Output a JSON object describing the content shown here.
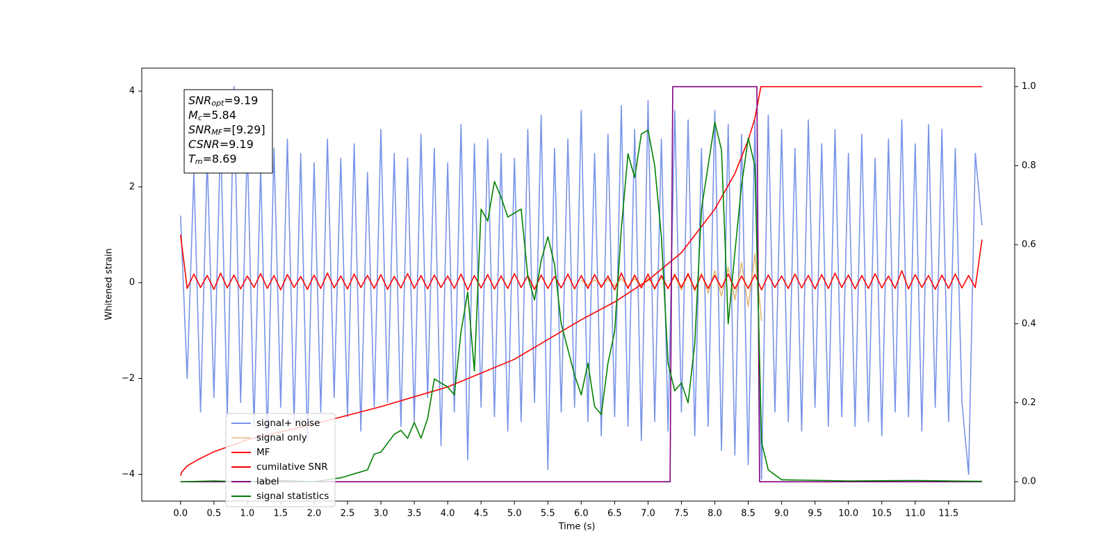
{
  "chart_data": {
    "type": "line",
    "xlabel": "Time (s)",
    "ylabel": "Whitened strain",
    "xlim": [
      -0.58,
      12.49
    ],
    "ylim": [
      -4.56,
      4.48
    ],
    "y2lim": [
      -0.049,
      1.047
    ],
    "xticks": [
      {
        "value": 0,
        "label": "0.0"
      },
      {
        "value": 0.5,
        "label": "0.5"
      },
      {
        "value": 1,
        "label": "1.0"
      },
      {
        "value": 1.5,
        "label": "1.5"
      },
      {
        "value": 2,
        "label": "2.0"
      },
      {
        "value": 2.5,
        "label": "2.5"
      },
      {
        "value": 3,
        "label": "3.0"
      },
      {
        "value": 3.5,
        "label": "3.5"
      },
      {
        "value": 4,
        "label": "4.0"
      },
      {
        "value": 4.5,
        "label": "4.5"
      },
      {
        "value": 5,
        "label": "5.0"
      },
      {
        "value": 5.5,
        "label": "5.5"
      },
      {
        "value": 6,
        "label": "6.0"
      },
      {
        "value": 6.5,
        "label": "6.5"
      },
      {
        "value": 7,
        "label": "7.0"
      },
      {
        "value": 7.5,
        "label": "7.5"
      },
      {
        "value": 8,
        "label": "8.0"
      },
      {
        "value": 8.5,
        "label": "8.5"
      },
      {
        "value": 9,
        "label": "9.0"
      },
      {
        "value": 9.5,
        "label": "9.5"
      },
      {
        "value": 10,
        "label": "10.0"
      },
      {
        "value": 10.5,
        "label": "10.5"
      },
      {
        "value": 11,
        "label": "11.0"
      },
      {
        "value": 11.5,
        "label": "11.5"
      }
    ],
    "yticks": [
      {
        "value": -4,
        "label": "−4"
      },
      {
        "value": -2,
        "label": "−2"
      },
      0,
      2,
      4
    ],
    "y2ticks": [
      {
        "value": 0,
        "label": "0.0"
      },
      {
        "value": 0.2,
        "label": "0.2"
      },
      {
        "value": 0.4,
        "label": "0.4"
      },
      {
        "value": 0.6,
        "label": "0.6"
      },
      {
        "value": 0.8,
        "label": "0.8"
      },
      {
        "value": 1,
        "label": "1.0"
      }
    ],
    "legend": "lower left",
    "annotations": [
      {
        "name": "SNR",
        "sub": "opt",
        "text": "=9.19"
      },
      {
        "name": "M",
        "sub": "c",
        "text": "=5.84"
      },
      {
        "name": "SNR",
        "sub": "MF",
        "text": "=[9.29]"
      },
      {
        "name": "CSNR",
        "text": "=9.19"
      },
      {
        "name": "T",
        "sub": "m",
        "text": "=8.69"
      }
    ],
    "x": [
      0,
      0.1,
      0.2,
      0.3,
      0.4,
      0.5,
      0.6,
      0.7,
      0.8,
      0.9,
      1,
      1.1,
      1.2,
      1.3,
      1.4,
      1.5,
      1.6,
      1.7,
      1.8,
      1.9,
      2,
      2.1,
      2.2,
      2.3,
      2.4,
      2.5,
      2.6,
      2.7,
      2.8,
      2.9,
      3,
      3.1,
      3.2,
      3.3,
      3.4,
      3.5,
      3.6,
      3.7,
      3.8,
      3.9,
      4,
      4.1,
      4.2,
      4.3,
      4.4,
      4.5,
      4.6,
      4.7,
      4.8,
      4.9,
      5,
      5.1,
      5.2,
      5.3,
      5.4,
      5.5,
      5.6,
      5.7,
      5.8,
      5.9,
      6,
      6.1,
      6.2,
      6.3,
      6.4,
      6.5,
      6.6,
      6.7,
      6.8,
      6.9,
      7,
      7.1,
      7.2,
      7.3,
      7.4,
      7.5,
      7.6,
      7.7,
      7.8,
      7.9,
      8,
      8.1,
      8.2,
      8.3,
      8.4,
      8.5,
      8.6,
      8.7,
      8.8,
      8.9,
      9,
      9.1,
      9.2,
      9.3,
      9.4,
      9.5,
      9.6,
      9.7,
      9.8,
      9.9,
      10,
      10.1,
      10.2,
      10.3,
      10.4,
      10.5,
      10.6,
      10.7,
      10.8,
      10.9,
      11,
      11.1,
      11.2,
      11.3,
      11.4,
      11.5,
      11.6,
      11.7,
      11.8,
      11.9,
      12
    ],
    "series": [
      {
        "name": "signal+ noise",
        "color": "#7893e8",
        "values": [
          1.4,
          -2.0,
          2.3,
          -2.7,
          2.6,
          -2.4,
          3.1,
          -2.8,
          4.1,
          -2.5,
          2.9,
          -3.0,
          2.4,
          -3.2,
          2.8,
          -2.6,
          3.0,
          -2.9,
          2.7,
          -3.3,
          2.5,
          -2.7,
          3.0,
          -2.4,
          2.6,
          -2.8,
          2.9,
          -3.1,
          2.3,
          -2.6,
          3.2,
          -2.5,
          2.7,
          -3.0,
          2.6,
          -2.9,
          3.1,
          -2.4,
          2.8,
          -3.4,
          2.5,
          -2.7,
          3.3,
          -3.7,
          2.9,
          -2.6,
          3.0,
          -2.8,
          2.7,
          -3.1,
          2.6,
          -2.9,
          3.2,
          -2.5,
          3.5,
          -3.9,
          2.8,
          -2.7,
          3.0,
          -2.6,
          3.6,
          -2.9,
          2.7,
          -3.2,
          3.1,
          -2.8,
          3.7,
          -3.0,
          3.2,
          -3.3,
          3.8,
          -2.9,
          3.0,
          -3.1,
          3.6,
          -2.7,
          3.4,
          -3.2,
          2.8,
          -3.0,
          3.6,
          -3.5,
          3.3,
          -3.6,
          3.1,
          -3.8,
          3.4,
          -4.1,
          3.5,
          -2.7,
          3.2,
          -2.9,
          2.8,
          -3.1,
          3.4,
          -2.6,
          2.9,
          -3.0,
          3.2,
          -2.8,
          2.7,
          -3.0,
          3.1,
          -2.9,
          2.6,
          -3.2,
          3.0,
          -2.7,
          3.4,
          -2.8,
          2.9,
          -3.1,
          3.3,
          -2.6,
          3.2,
          -2.9,
          2.8,
          -2.5,
          -4.0,
          2.7,
          1.2
        ]
      },
      {
        "name": "signal only",
        "color": "#d9a95a",
        "x": [
          6.0,
          6.1,
          6.2,
          6.3,
          6.4,
          6.5,
          6.6,
          6.7,
          6.8,
          6.9,
          7.0,
          7.1,
          7.2,
          7.3,
          7.4,
          7.5,
          7.6,
          7.7,
          7.8,
          7.9,
          8.0,
          8.1,
          8.2,
          8.3,
          8.4,
          8.5,
          8.6,
          8.7
        ],
        "values": [
          0.05,
          -0.05,
          0.06,
          -0.06,
          0.07,
          -0.07,
          0.08,
          -0.08,
          0.09,
          -0.09,
          0.1,
          -0.11,
          0.12,
          -0.13,
          0.14,
          -0.15,
          0.17,
          -0.18,
          0.2,
          -0.22,
          0.25,
          -0.28,
          0.32,
          -0.36,
          0.42,
          -0.5,
          0.6,
          -0.8
        ]
      },
      {
        "name": "MF",
        "color": "#ff0000",
        "values": [
          1.0,
          -0.12,
          0.18,
          -0.1,
          0.15,
          -0.14,
          0.2,
          -0.11,
          0.16,
          -0.13,
          0.14,
          -0.1,
          0.19,
          -0.12,
          0.15,
          -0.15,
          0.17,
          -0.1,
          0.13,
          -0.14,
          0.16,
          -0.12,
          0.2,
          -0.11,
          0.14,
          -0.13,
          0.18,
          -0.1,
          0.15,
          -0.12,
          0.17,
          -0.14,
          0.13,
          -0.11,
          0.19,
          -0.12,
          0.15,
          -0.13,
          0.16,
          -0.1,
          0.14,
          -0.12,
          0.18,
          -0.15,
          0.15,
          -0.11,
          0.17,
          -0.13,
          0.14,
          -0.12,
          0.19,
          -0.1,
          0.15,
          -0.14,
          0.16,
          -0.12,
          0.13,
          -0.11,
          0.18,
          -0.13,
          0.15,
          -0.12,
          0.17,
          -0.1,
          0.14,
          -0.15,
          0.2,
          -0.12,
          0.16,
          -0.11,
          0.18,
          -0.13,
          0.15,
          -0.12,
          0.17,
          -0.1,
          0.19,
          -0.14,
          0.16,
          -0.12,
          0.15,
          -0.11,
          0.18,
          -0.13,
          0.14,
          -0.12,
          0.17,
          -0.15,
          0.16,
          -0.1,
          0.14,
          -0.12,
          0.18,
          -0.11,
          0.15,
          -0.13,
          0.17,
          -0.12,
          0.2,
          -0.1,
          0.16,
          -0.13,
          0.15,
          -0.12,
          0.19,
          -0.11,
          0.14,
          -0.12,
          0.25,
          -0.13,
          0.17,
          -0.1,
          0.15,
          -0.14,
          0.16,
          -0.12,
          0.18,
          -0.11,
          0.15,
          -0.1,
          0.9
        ]
      },
      {
        "name": "cumilative SNR",
        "color": "#ff0000",
        "axis": "y2",
        "x": [
          0,
          0.02,
          0.1,
          0.25,
          0.5,
          1,
          2,
          3,
          4,
          5,
          6,
          6.5,
          7,
          7.5,
          8,
          8.3,
          8.5,
          8.6,
          8.69,
          12
        ],
        "values": [
          0.015,
          0.025,
          0.04,
          0.055,
          0.076,
          0.106,
          0.146,
          0.19,
          0.24,
          0.31,
          0.41,
          0.455,
          0.51,
          0.58,
          0.69,
          0.78,
          0.865,
          0.92,
          1.0,
          1.0
        ]
      },
      {
        "name": "label",
        "color": "#800080",
        "axis": "y2",
        "x": [
          0,
          7.33,
          7.37,
          8.63,
          8.67,
          12
        ],
        "values": [
          0,
          0,
          1,
          1,
          0,
          0
        ]
      },
      {
        "name": "signal statistics",
        "color": "#008000",
        "axis": "y2",
        "x": [
          0,
          0.5,
          1,
          1.5,
          2,
          2.4,
          2.8,
          2.9,
          3,
          3.2,
          3.3,
          3.4,
          3.5,
          3.6,
          3.7,
          3.8,
          4,
          4.1,
          4.2,
          4.3,
          4.4,
          4.5,
          4.6,
          4.7,
          4.8,
          4.9,
          5,
          5.1,
          5.2,
          5.3,
          5.4,
          5.5,
          5.6,
          5.7,
          5.9,
          6,
          6.1,
          6.2,
          6.3,
          6.4,
          6.5,
          6.6,
          6.7,
          6.8,
          6.9,
          7,
          7.1,
          7.2,
          7.3,
          7.4,
          7.5,
          7.6,
          7.7,
          7.8,
          7.9,
          8,
          8.1,
          8.2,
          8.3,
          8.4,
          8.5,
          8.6,
          8.7,
          8.8,
          9,
          10,
          11,
          12
        ],
        "values": [
          0,
          0.002,
          0,
          0.003,
          0,
          0.01,
          0.03,
          0.07,
          0.075,
          0.12,
          0.13,
          0.11,
          0.15,
          0.11,
          0.16,
          0.26,
          0.24,
          0.22,
          0.38,
          0.48,
          0.28,
          0.69,
          0.66,
          0.76,
          0.72,
          0.67,
          0.68,
          0.69,
          0.52,
          0.46,
          0.56,
          0.62,
          0.55,
          0.4,
          0.27,
          0.22,
          0.3,
          0.19,
          0.17,
          0.3,
          0.38,
          0.64,
          0.83,
          0.77,
          0.88,
          0.89,
          0.8,
          0.62,
          0.3,
          0.23,
          0.25,
          0.2,
          0.35,
          0.69,
          0.8,
          0.91,
          0.84,
          0.4,
          0.58,
          0.75,
          0.87,
          0.8,
          0.1,
          0.03,
          0.005,
          0.002,
          0.003,
          0.001
        ]
      }
    ]
  }
}
